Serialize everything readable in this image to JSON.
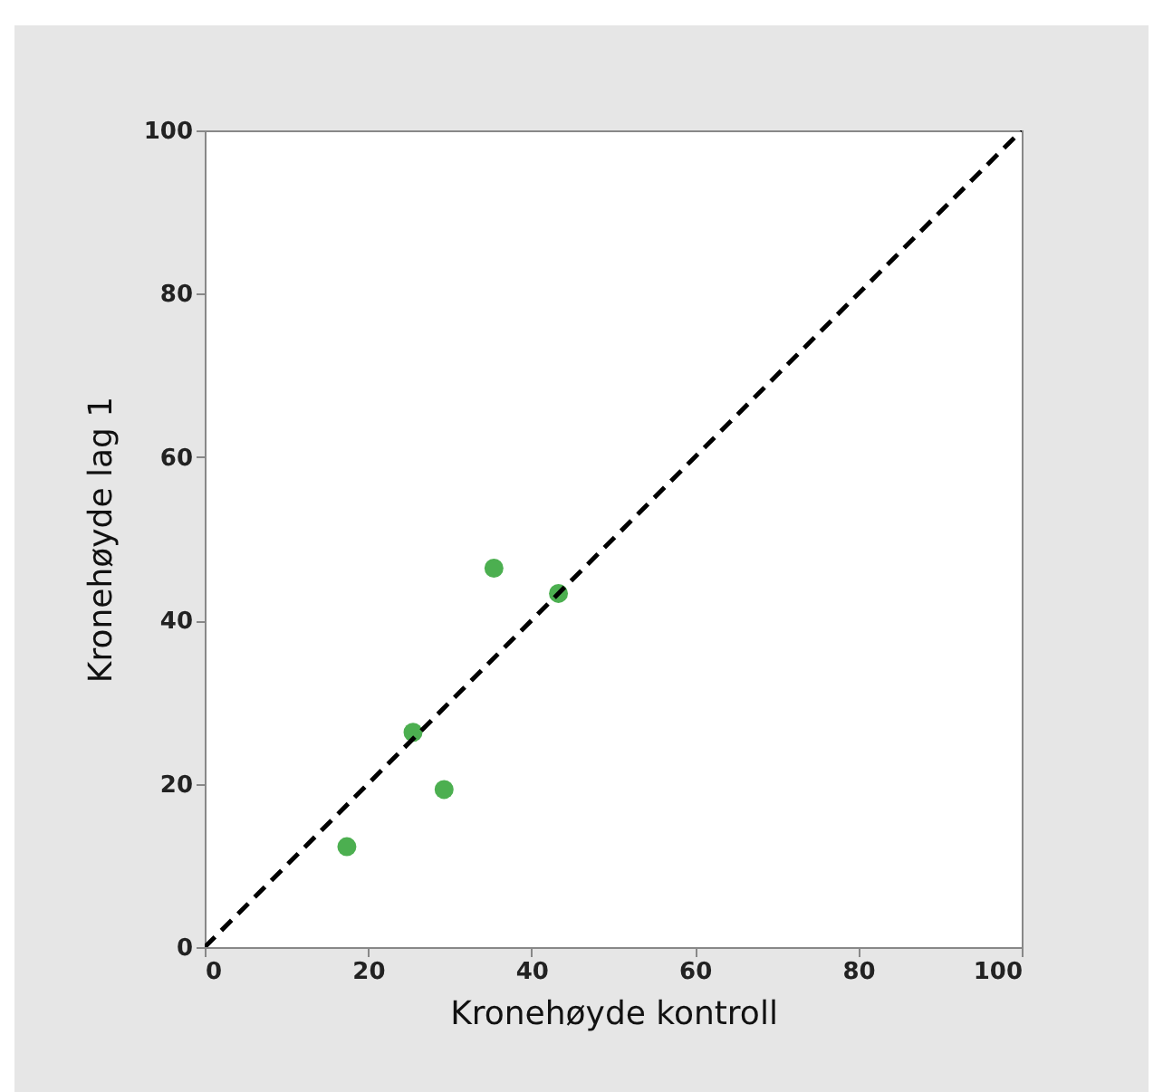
{
  "chart_data": {
    "type": "scatter",
    "xlabel": "Kronehøyde kontroll",
    "ylabel": "Kronehøyde lag 1",
    "xlim": [
      0,
      100
    ],
    "ylim": [
      0,
      100
    ],
    "xticks": [
      0,
      20,
      40,
      60,
      80,
      100
    ],
    "yticks": [
      0,
      20,
      40,
      60,
      80,
      100
    ],
    "grid": false,
    "marker": "circle",
    "series": [
      {
        "color": "#4caf50",
        "x": [
          17.4,
          25.5,
          29.3,
          35.4,
          43.3
        ],
        "values": [
          12.3,
          26.3,
          19.3,
          46.4,
          43.3
        ]
      },
      {
        "type": "line",
        "color": "#000000",
        "line_style": "dashed",
        "marker": "none",
        "x": [
          0,
          100
        ],
        "values": [
          0,
          100
        ]
      }
    ]
  }
}
